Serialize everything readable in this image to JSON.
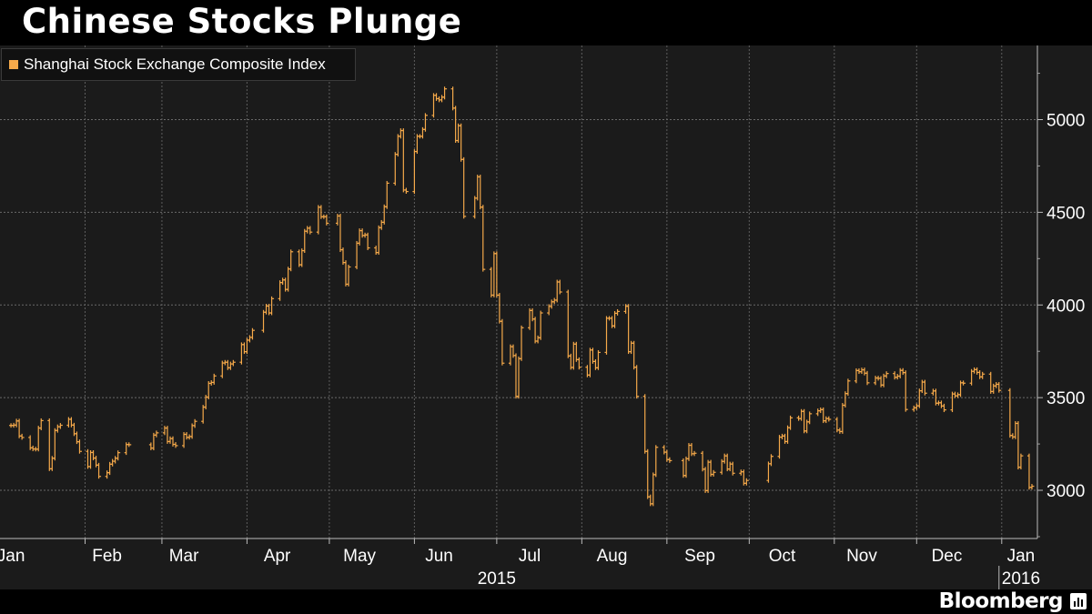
{
  "title": "Chinese Stocks Plunge",
  "legend": {
    "label": "Shanghai Stock Exchange Composite Index",
    "color": "#f5a94a"
  },
  "brand": "Bloomberg",
  "chart_data": {
    "type": "line",
    "series": [
      {
        "name": "Shanghai Stock Exchange Composite Index",
        "color": "#f5a94a",
        "points": [
          [
            "2015-01-05",
            3350
          ],
          [
            "2015-01-06",
            3352
          ],
          [
            "2015-01-07",
            3374
          ],
          [
            "2015-01-08",
            3293
          ],
          [
            "2015-01-09",
            3285
          ],
          [
            "2015-01-12",
            3229
          ],
          [
            "2015-01-13",
            3223
          ],
          [
            "2015-01-14",
            3222
          ],
          [
            "2015-01-15",
            3336
          ],
          [
            "2015-01-16",
            3376
          ],
          [
            "2015-01-19",
            3116
          ],
          [
            "2015-01-20",
            3173
          ],
          [
            "2015-01-21",
            3323
          ],
          [
            "2015-01-22",
            3343
          ],
          [
            "2015-01-23",
            3351
          ],
          [
            "2015-01-26",
            3383
          ],
          [
            "2015-01-27",
            3352
          ],
          [
            "2015-01-28",
            3305
          ],
          [
            "2015-01-29",
            3262
          ],
          [
            "2015-01-30",
            3210
          ],
          [
            "2015-02-02",
            3128
          ],
          [
            "2015-02-03",
            3204
          ],
          [
            "2015-02-04",
            3174
          ],
          [
            "2015-02-05",
            3136
          ],
          [
            "2015-02-06",
            3075
          ],
          [
            "2015-02-09",
            3095
          ],
          [
            "2015-02-10",
            3141
          ],
          [
            "2015-02-11",
            3157
          ],
          [
            "2015-02-12",
            3173
          ],
          [
            "2015-02-13",
            3203
          ],
          [
            "2015-02-16",
            3247
          ],
          [
            "2015-02-17",
            3246
          ],
          [
            "2015-02-25",
            3228
          ],
          [
            "2015-02-26",
            3298
          ],
          [
            "2015-02-27",
            3310
          ],
          [
            "2015-03-02",
            3336
          ],
          [
            "2015-03-03",
            3263
          ],
          [
            "2015-03-04",
            3279
          ],
          [
            "2015-03-05",
            3248
          ],
          [
            "2015-03-06",
            3241
          ],
          [
            "2015-03-09",
            3302
          ],
          [
            "2015-03-10",
            3286
          ],
          [
            "2015-03-11",
            3290
          ],
          [
            "2015-03-12",
            3349
          ],
          [
            "2015-03-13",
            3372
          ],
          [
            "2015-03-16",
            3449
          ],
          [
            "2015-03-17",
            3503
          ],
          [
            "2015-03-18",
            3577
          ],
          [
            "2015-03-19",
            3582
          ],
          [
            "2015-03-20",
            3617
          ],
          [
            "2015-03-23",
            3687
          ],
          [
            "2015-03-24",
            3691
          ],
          [
            "2015-03-25",
            3661
          ],
          [
            "2015-03-26",
            3682
          ],
          [
            "2015-03-27",
            3691
          ],
          [
            "2015-03-30",
            3786
          ],
          [
            "2015-03-31",
            3748
          ],
          [
            "2015-04-01",
            3810
          ],
          [
            "2015-04-02",
            3825
          ],
          [
            "2015-04-03",
            3863
          ],
          [
            "2015-04-07",
            3961
          ],
          [
            "2015-04-08",
            3994
          ],
          [
            "2015-04-09",
            3957
          ],
          [
            "2015-04-10",
            4034
          ],
          [
            "2015-04-13",
            4121
          ],
          [
            "2015-04-14",
            4135
          ],
          [
            "2015-04-15",
            4084
          ],
          [
            "2015-04-16",
            4194
          ],
          [
            "2015-04-17",
            4287
          ],
          [
            "2015-04-20",
            4217
          ],
          [
            "2015-04-21",
            4293
          ],
          [
            "2015-04-22",
            4398
          ],
          [
            "2015-04-23",
            4414
          ],
          [
            "2015-04-24",
            4393
          ],
          [
            "2015-04-27",
            4527
          ],
          [
            "2015-04-28",
            4476
          ],
          [
            "2015-04-29",
            4476
          ],
          [
            "2015-04-30",
            4441
          ],
          [
            "2015-05-04",
            4480
          ],
          [
            "2015-05-05",
            4298
          ],
          [
            "2015-05-06",
            4229
          ],
          [
            "2015-05-07",
            4112
          ],
          [
            "2015-05-08",
            4205
          ],
          [
            "2015-05-11",
            4333
          ],
          [
            "2015-05-12",
            4401
          ],
          [
            "2015-05-13",
            4375
          ],
          [
            "2015-05-14",
            4378
          ],
          [
            "2015-05-15",
            4308
          ],
          [
            "2015-05-18",
            4283
          ],
          [
            "2015-05-19",
            4417
          ],
          [
            "2015-05-20",
            4446
          ],
          [
            "2015-05-21",
            4530
          ],
          [
            "2015-05-22",
            4657
          ],
          [
            "2015-05-25",
            4813
          ],
          [
            "2015-05-26",
            4910
          ],
          [
            "2015-05-27",
            4941
          ],
          [
            "2015-05-28",
            4620
          ],
          [
            "2015-05-29",
            4612
          ],
          [
            "2015-06-01",
            4828
          ],
          [
            "2015-06-02",
            4910
          ],
          [
            "2015-06-03",
            4910
          ],
          [
            "2015-06-04",
            4947
          ],
          [
            "2015-06-05",
            5023
          ],
          [
            "2015-06-08",
            5131
          ],
          [
            "2015-06-09",
            5113
          ],
          [
            "2015-06-10",
            5106
          ],
          [
            "2015-06-11",
            5121
          ],
          [
            "2015-06-12",
            5166
          ],
          [
            "2015-06-15",
            5062
          ],
          [
            "2015-06-16",
            4887
          ],
          [
            "2015-06-17",
            4967
          ],
          [
            "2015-06-18",
            4785
          ],
          [
            "2015-06-19",
            4478
          ],
          [
            "2015-06-23",
            4576
          ],
          [
            "2015-06-24",
            4691
          ],
          [
            "2015-06-25",
            4528
          ],
          [
            "2015-06-26",
            4192
          ],
          [
            "2015-06-29",
            4053
          ],
          [
            "2015-06-30",
            4277
          ],
          [
            "2015-07-01",
            4053
          ],
          [
            "2015-07-02",
            3912
          ],
          [
            "2015-07-03",
            3686
          ],
          [
            "2015-07-06",
            3775
          ],
          [
            "2015-07-07",
            3727
          ],
          [
            "2015-07-08",
            3507
          ],
          [
            "2015-07-09",
            3710
          ],
          [
            "2015-07-10",
            3877
          ],
          [
            "2015-07-13",
            3970
          ],
          [
            "2015-07-14",
            3924
          ],
          [
            "2015-07-15",
            3805
          ],
          [
            "2015-07-16",
            3823
          ],
          [
            "2015-07-17",
            3957
          ],
          [
            "2015-07-20",
            3992
          ],
          [
            "2015-07-21",
            4017
          ],
          [
            "2015-07-22",
            4026
          ],
          [
            "2015-07-23",
            4124
          ],
          [
            "2015-07-24",
            4070
          ],
          [
            "2015-07-27",
            3725
          ],
          [
            "2015-07-28",
            3663
          ],
          [
            "2015-07-29",
            3789
          ],
          [
            "2015-07-30",
            3705
          ],
          [
            "2015-07-31",
            3664
          ],
          [
            "2015-08-03",
            3622
          ],
          [
            "2015-08-04",
            3757
          ],
          [
            "2015-08-05",
            3695
          ],
          [
            "2015-08-06",
            3661
          ],
          [
            "2015-08-07",
            3744
          ],
          [
            "2015-08-10",
            3928
          ],
          [
            "2015-08-11",
            3928
          ],
          [
            "2015-08-12",
            3887
          ],
          [
            "2015-08-13",
            3955
          ],
          [
            "2015-08-14",
            3965
          ],
          [
            "2015-08-17",
            3993
          ],
          [
            "2015-08-18",
            3748
          ],
          [
            "2015-08-19",
            3794
          ],
          [
            "2015-08-20",
            3664
          ],
          [
            "2015-08-21",
            3507
          ],
          [
            "2015-08-24",
            3210
          ],
          [
            "2015-08-25",
            2965
          ],
          [
            "2015-08-26",
            2927
          ],
          [
            "2015-08-27",
            3084
          ],
          [
            "2015-08-28",
            3232
          ],
          [
            "2015-08-31",
            3206
          ],
          [
            "2015-09-01",
            3166
          ],
          [
            "2015-09-02",
            3160
          ],
          [
            "2015-09-07",
            3080
          ],
          [
            "2015-09-08",
            3170
          ],
          [
            "2015-09-09",
            3243
          ],
          [
            "2015-09-10",
            3197
          ],
          [
            "2015-09-11",
            3200
          ],
          [
            "2015-09-14",
            3114
          ],
          [
            "2015-09-15",
            2998
          ],
          [
            "2015-09-16",
            3152
          ],
          [
            "2015-09-17",
            3086
          ],
          [
            "2015-09-18",
            3097
          ],
          [
            "2015-09-21",
            3156
          ],
          [
            "2015-09-22",
            3186
          ],
          [
            "2015-09-23",
            3115
          ],
          [
            "2015-09-24",
            3142
          ],
          [
            "2015-09-25",
            3092
          ],
          [
            "2015-09-28",
            3100
          ],
          [
            "2015-09-29",
            3038
          ],
          [
            "2015-09-30",
            3053
          ],
          [
            "2015-10-08",
            3143
          ],
          [
            "2015-10-09",
            3183
          ],
          [
            "2015-10-12",
            3287
          ],
          [
            "2015-10-13",
            3293
          ],
          [
            "2015-10-14",
            3263
          ],
          [
            "2015-10-15",
            3338
          ],
          [
            "2015-10-16",
            3391
          ],
          [
            "2015-10-19",
            3387
          ],
          [
            "2015-10-20",
            3426
          ],
          [
            "2015-10-21",
            3320
          ],
          [
            "2015-10-22",
            3369
          ],
          [
            "2015-10-23",
            3413
          ],
          [
            "2015-10-26",
            3429
          ],
          [
            "2015-10-27",
            3435
          ],
          [
            "2015-10-28",
            3375
          ],
          [
            "2015-10-29",
            3387
          ],
          [
            "2015-10-30",
            3383
          ],
          [
            "2015-11-02",
            3325
          ],
          [
            "2015-11-03",
            3317
          ],
          [
            "2015-11-04",
            3459
          ],
          [
            "2015-11-05",
            3522
          ],
          [
            "2015-11-06",
            3590
          ],
          [
            "2015-11-09",
            3646
          ],
          [
            "2015-11-10",
            3640
          ],
          [
            "2015-11-11",
            3650
          ],
          [
            "2015-11-12",
            3632
          ],
          [
            "2015-11-13",
            3580
          ],
          [
            "2015-11-16",
            3606
          ],
          [
            "2015-11-17",
            3604
          ],
          [
            "2015-11-18",
            3568
          ],
          [
            "2015-11-19",
            3617
          ],
          [
            "2015-11-20",
            3630
          ],
          [
            "2015-11-23",
            3610
          ],
          [
            "2015-11-24",
            3616
          ],
          [
            "2015-11-25",
            3647
          ],
          [
            "2015-11-26",
            3635
          ],
          [
            "2015-11-27",
            3436
          ],
          [
            "2015-11-30",
            3445
          ],
          [
            "2015-12-01",
            3456
          ],
          [
            "2015-12-02",
            3537
          ],
          [
            "2015-12-03",
            3584
          ],
          [
            "2015-12-04",
            3524
          ],
          [
            "2015-12-07",
            3536
          ],
          [
            "2015-12-08",
            3470
          ],
          [
            "2015-12-09",
            3472
          ],
          [
            "2015-12-10",
            3455
          ],
          [
            "2015-12-11",
            3434
          ],
          [
            "2015-12-14",
            3520
          ],
          [
            "2015-12-15",
            3510
          ],
          [
            "2015-12-16",
            3516
          ],
          [
            "2015-12-17",
            3580
          ],
          [
            "2015-12-18",
            3578
          ],
          [
            "2015-12-21",
            3642
          ],
          [
            "2015-12-22",
            3651
          ],
          [
            "2015-12-23",
            3636
          ],
          [
            "2015-12-24",
            3612
          ],
          [
            "2015-12-25",
            3627
          ],
          [
            "2015-12-28",
            3533
          ],
          [
            "2015-12-29",
            3563
          ],
          [
            "2015-12-30",
            3572
          ],
          [
            "2015-12-31",
            3539
          ],
          [
            "2016-01-04",
            3296
          ],
          [
            "2016-01-05",
            3288
          ],
          [
            "2016-01-06",
            3361
          ],
          [
            "2016-01-07",
            3125
          ],
          [
            "2016-01-08",
            3186
          ],
          [
            "2016-01-11",
            3016
          ],
          [
            "2016-01-12",
            3022
          ]
        ]
      }
    ],
    "x_range": [
      "2015-01-01",
      "2016-01-14"
    ],
    "ylim": [
      2740,
      5400
    ],
    "y_ticks": [
      {
        "value": 3000,
        "label": "3000"
      },
      {
        "value": 3500,
        "label": "3500"
      },
      {
        "value": 4000,
        "label": "4000"
      },
      {
        "value": 4500,
        "label": "4500"
      },
      {
        "value": 5000,
        "label": "5000"
      }
    ],
    "x_ticks": [
      {
        "date": "2015-01-05",
        "label": "Jan"
      },
      {
        "date": "2015-02-09",
        "label": "Feb"
      },
      {
        "date": "2015-03-09",
        "label": "Mar"
      },
      {
        "date": "2015-04-12",
        "label": "Apr"
      },
      {
        "date": "2015-05-12",
        "label": "May"
      },
      {
        "date": "2015-06-10",
        "label": "Jun"
      },
      {
        "date": "2015-07-13",
        "label": "Jul"
      },
      {
        "date": "2015-08-12",
        "label": "Aug"
      },
      {
        "date": "2015-09-13",
        "label": "Sep"
      },
      {
        "date": "2015-10-13",
        "label": "Oct"
      },
      {
        "date": "2015-11-11",
        "label": "Nov"
      },
      {
        "date": "2015-12-12",
        "label": "Dec"
      },
      {
        "date": "2016-01-08",
        "label": "Jan"
      }
    ],
    "x_gridlines": [
      "2015-02-01",
      "2015-03-01",
      "2015-04-01",
      "2015-05-01",
      "2015-06-01",
      "2015-07-01",
      "2015-08-01",
      "2015-09-01",
      "2015-10-01",
      "2015-11-01",
      "2015-12-01",
      "2016-01-01"
    ],
    "year_labels": [
      {
        "date": "2015-07-01",
        "label": "2015"
      },
      {
        "date": "2016-01-08",
        "label": "2016"
      }
    ],
    "year_divider": "2016-01-01",
    "grid": true,
    "legend_position": "top-left"
  }
}
